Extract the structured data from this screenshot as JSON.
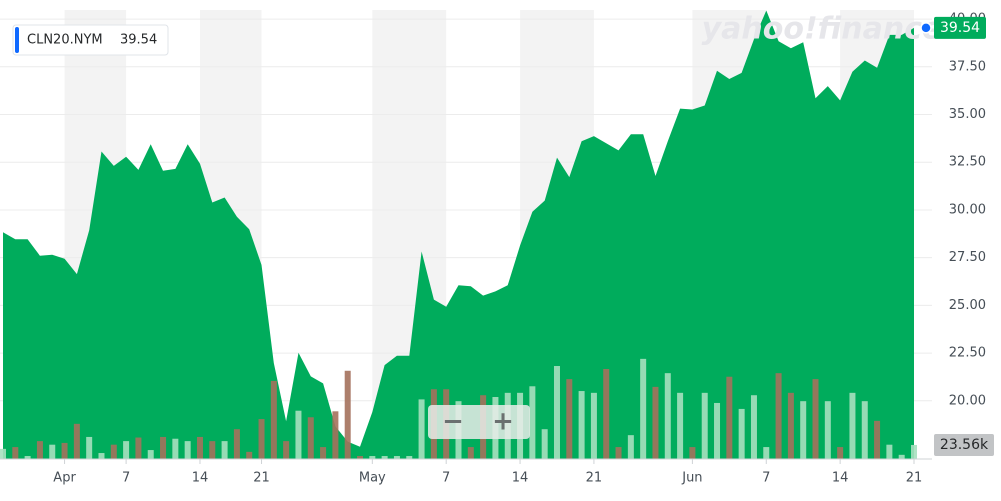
{
  "chart_data": {
    "type": "area",
    "watermark": "yahoo!finance",
    "last_price": 39.54,
    "last_volume": {
      "value": 23.56,
      "label": "23.56k"
    },
    "zoom_controls": [
      "−",
      "+"
    ],
    "categories": [
      null,
      null,
      null,
      null,
      null,
      "Apr",
      null,
      null,
      null,
      null,
      "7",
      null,
      null,
      null,
      null,
      null,
      "14",
      null,
      null,
      null,
      null,
      "21",
      null,
      null,
      null,
      null,
      null,
      null,
      null,
      null,
      "May",
      null,
      null,
      null,
      null,
      null,
      "7",
      null,
      null,
      null,
      null,
      null,
      "14",
      null,
      null,
      null,
      null,
      null,
      "21",
      null,
      null,
      null,
      null,
      null,
      null,
      null,
      "Jun",
      null,
      null,
      null,
      null,
      null,
      "7",
      null,
      null,
      null,
      null,
      null,
      "14",
      null,
      null,
      null,
      null,
      null,
      "21"
    ],
    "series": [
      {
        "name": "CLN20.NYM",
        "color": "#00ac5c",
        "values": [
          28.83,
          28.46,
          28.46,
          27.6,
          27.65,
          27.44,
          26.64,
          28.94,
          33.06,
          32.31,
          32.79,
          32.1,
          33.44,
          32.05,
          32.15,
          33.44,
          32.42,
          30.39,
          30.65,
          29.64,
          28.99,
          27.12,
          21.98,
          18.93,
          22.52,
          21.28,
          20.91,
          18.66,
          17.86,
          17.59,
          19.41,
          21.87,
          22.36,
          22.36,
          27.82,
          25.3,
          24.93,
          26.05,
          26,
          25.51,
          25.73,
          26.05,
          28.14,
          29.9,
          30.49,
          32.74,
          31.72,
          33.6,
          33.87,
          33.49,
          33.12,
          33.97,
          33.97,
          31.78,
          33.6,
          35.31,
          35.26,
          35.47,
          37.29,
          36.86,
          37.18,
          38.95,
          40.45,
          38.84,
          38.47,
          38.79,
          35.85,
          36.49,
          35.74,
          37.24,
          37.83,
          37.45,
          39.17,
          39.17,
          39.54
        ]
      },
      {
        "type": "bar",
        "axis": "y2",
        "color": "#a6e0bf",
        "down_color": "#a4715c",
        "values": [
          17,
          20,
          5,
          30,
          24,
          27,
          59,
          37,
          10,
          24,
          30,
          36,
          15,
          37,
          34,
          30,
          37,
          30,
          30,
          50,
          12,
          67,
          131,
          30,
          81,
          70,
          20,
          80,
          148,
          5,
          5,
          5,
          5,
          5,
          100,
          117,
          117,
          97,
          20,
          107,
          104,
          111,
          111,
          122,
          50,
          156,
          134,
          114,
          111,
          151,
          20,
          40,
          168,
          121,
          144,
          111,
          20,
          111,
          94,
          138,
          84,
          107,
          20,
          144,
          111,
          97,
          134,
          97,
          20,
          111,
          97,
          64,
          24,
          7,
          23.56
        ]
      }
    ],
    "ylim": [
      16.95,
      41.0
    ],
    "y2lim": [
      0,
      770
    ],
    "yticks": [
      {
        "value": 20,
        "label": "20.00"
      },
      {
        "value": 22.5,
        "label": "22.50"
      },
      {
        "value": 25,
        "label": "25.00"
      },
      {
        "value": 27.5,
        "label": "27.50"
      },
      {
        "value": 30,
        "label": "30.00"
      },
      {
        "value": 32.5,
        "label": "32.50"
      },
      {
        "value": 35,
        "label": "35.00"
      },
      {
        "value": 37.5,
        "label": "37.50"
      },
      {
        "value": 40,
        "label": "40.00"
      }
    ],
    "grid": true
  }
}
